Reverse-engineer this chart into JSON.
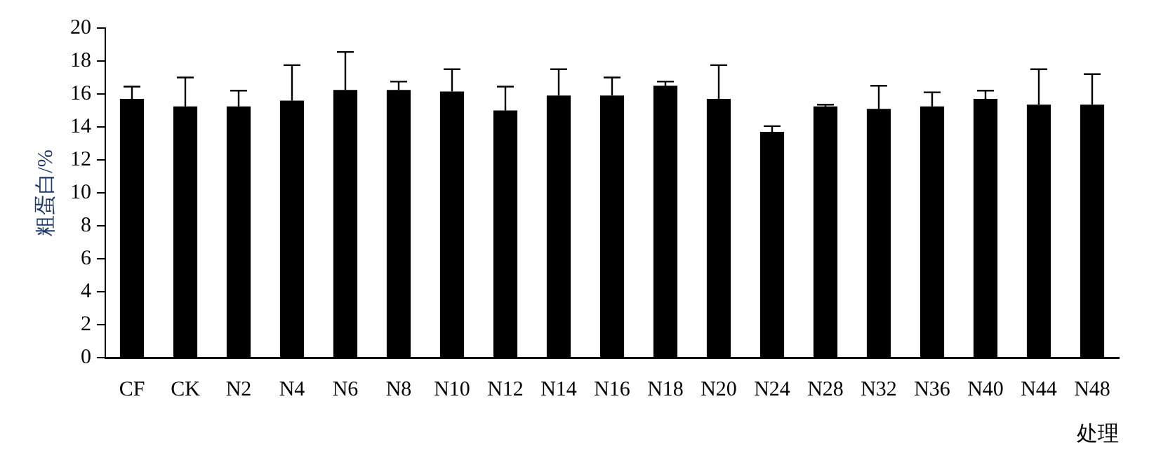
{
  "chart_data": {
    "type": "bar",
    "ylabel": "粗蛋白/%",
    "xlabel": "处理",
    "categories": [
      "CF",
      "CK",
      "N2",
      "N4",
      "N6",
      "N8",
      "N10",
      "N12",
      "N14",
      "N16",
      "N18",
      "N20",
      "N24",
      "N28",
      "N32",
      "N36",
      "N40",
      "N44",
      "N48"
    ],
    "values": [
      15.7,
      15.25,
      15.25,
      15.6,
      16.25,
      16.25,
      16.15,
      15.0,
      15.9,
      15.9,
      16.5,
      15.7,
      13.7,
      15.25,
      15.1,
      15.25,
      15.7,
      15.35,
      15.35
    ],
    "errors": [
      [
        15.7,
        16.45
      ],
      [
        15.25,
        17.0
      ],
      [
        15.25,
        16.2
      ],
      [
        15.6,
        17.75
      ],
      [
        16.25,
        18.55
      ],
      [
        16.25,
        16.75
      ],
      [
        16.15,
        17.5
      ],
      [
        15.0,
        16.45
      ],
      [
        15.9,
        17.5
      ],
      [
        15.9,
        17.0
      ],
      [
        16.5,
        16.75
      ],
      [
        15.7,
        17.75
      ],
      [
        13.7,
        14.05
      ],
      [
        15.25,
        15.35
      ],
      [
        15.1,
        16.5
      ],
      [
        15.25,
        16.1
      ],
      [
        15.7,
        16.2
      ],
      [
        15.35,
        17.5
      ],
      [
        15.35,
        17.2
      ]
    ],
    "color": "#000000",
    "ylim": [
      0,
      20
    ],
    "yticks": [
      0,
      2,
      4,
      6,
      8,
      10,
      12,
      14,
      16,
      18,
      20
    ],
    "grid": false,
    "legend": false
  }
}
